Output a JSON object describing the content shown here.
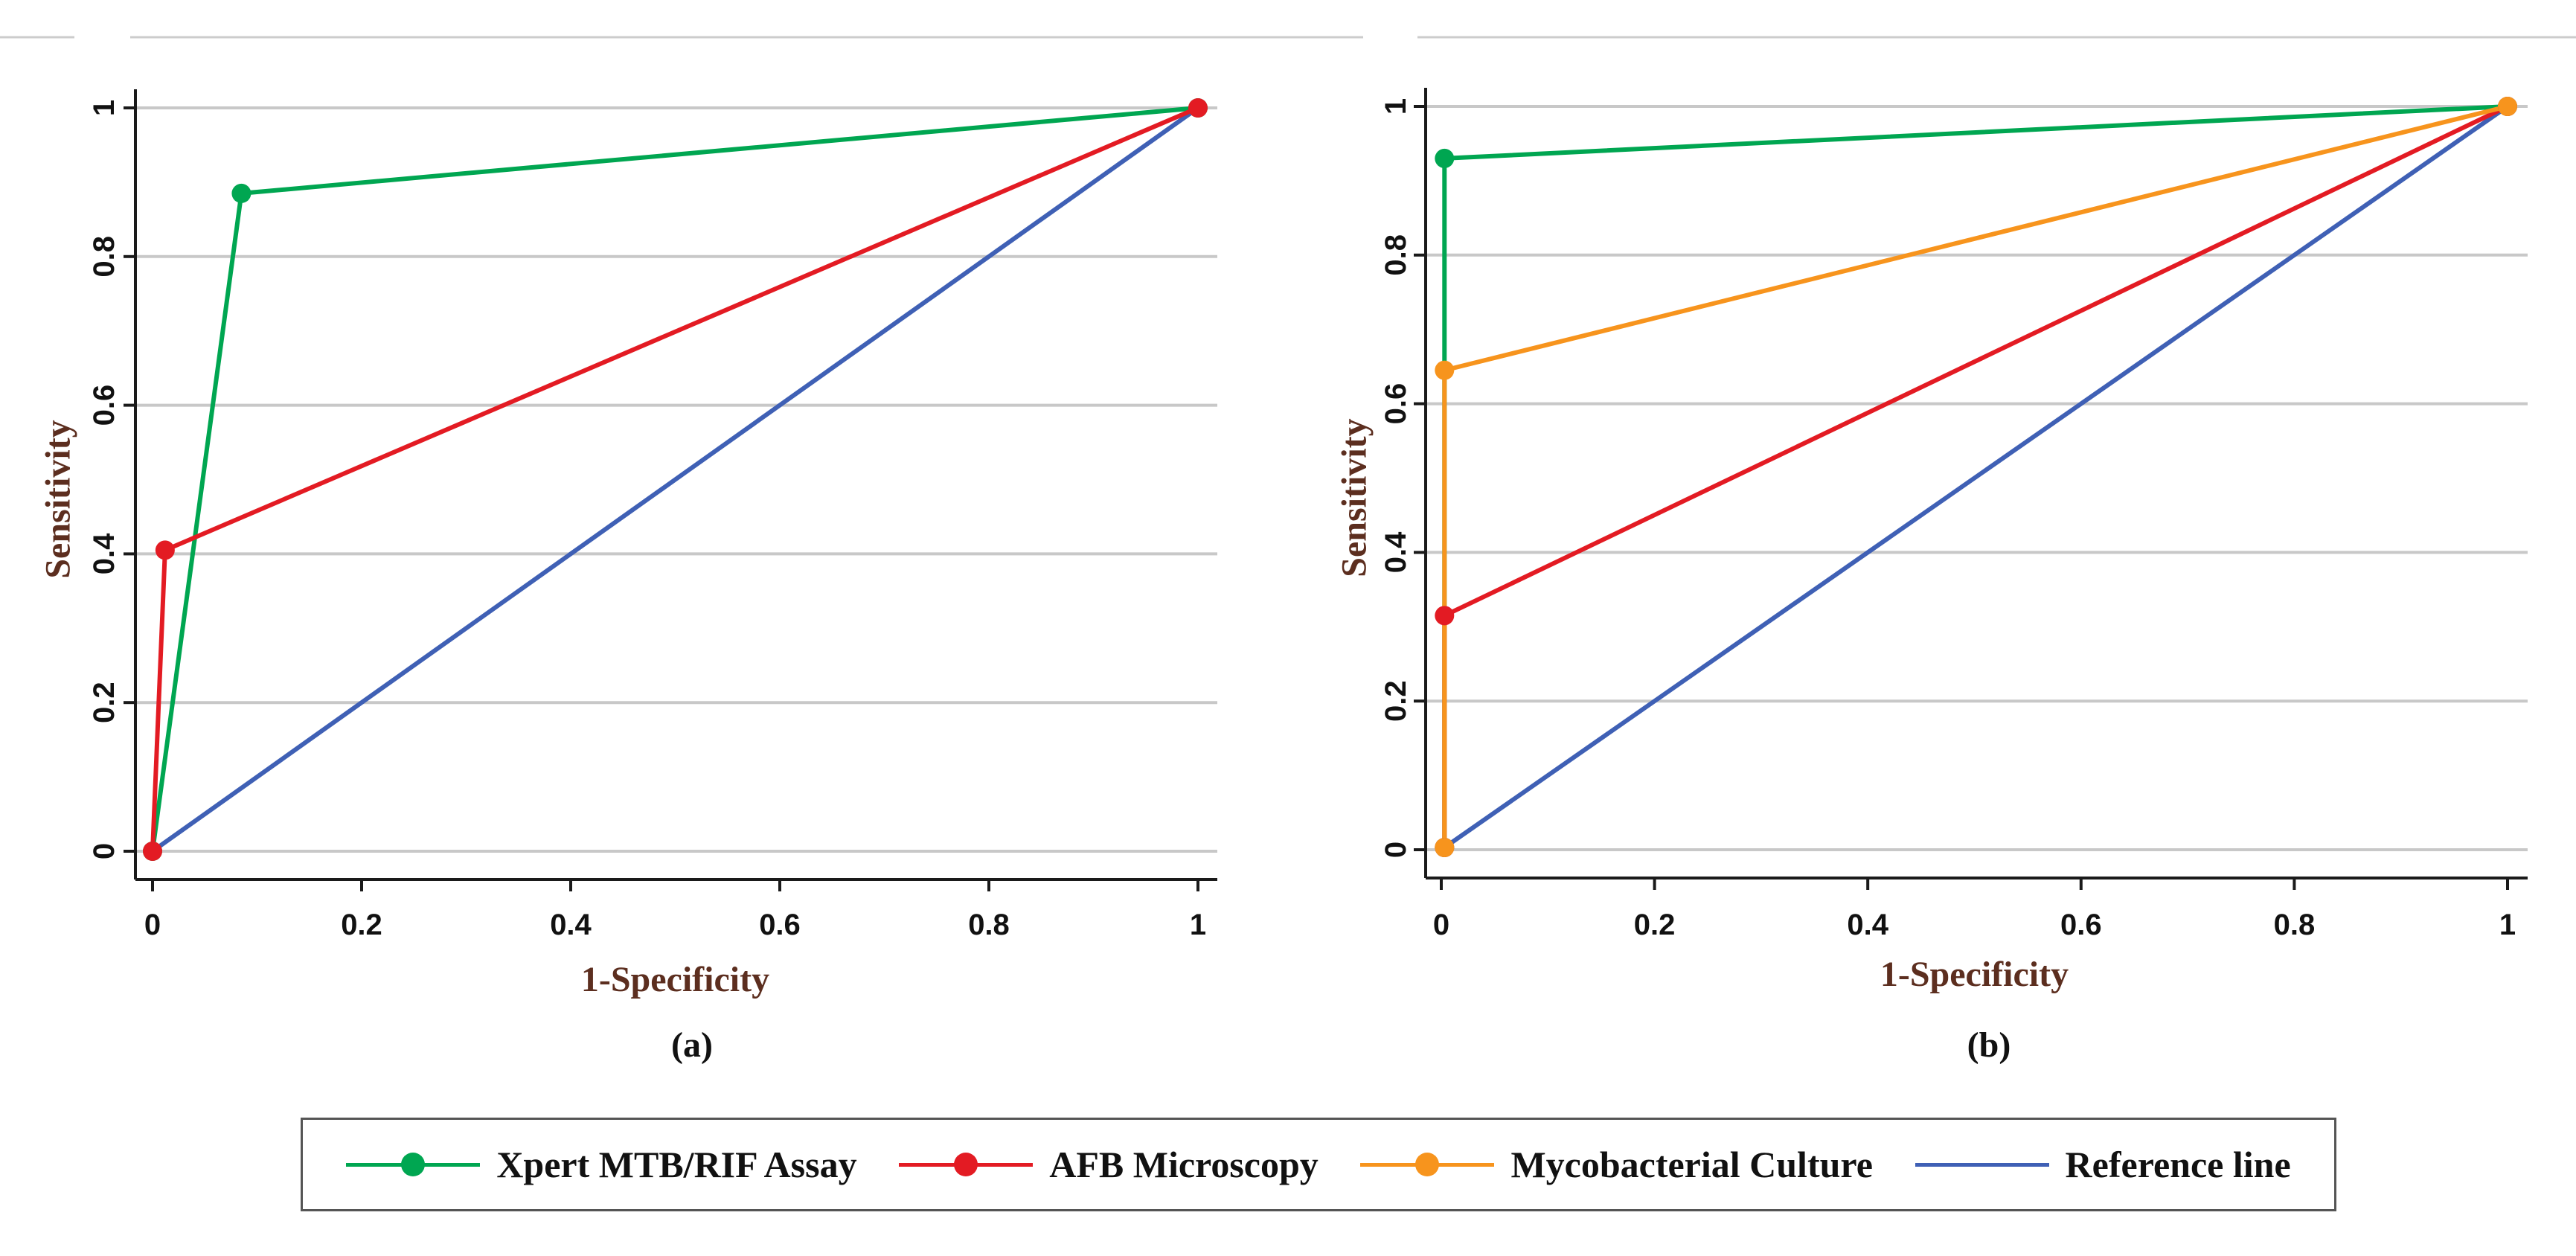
{
  "colors": {
    "xpert": "#00a651",
    "afb": "#e31b23",
    "culture": "#f7941d",
    "reference": "#3f60b5",
    "axis_title": "#5c2e1f",
    "grid": "#c8c8c8"
  },
  "chart_data": [
    {
      "type": "line",
      "panel": "a",
      "caption": "(a)",
      "xlabel": "1-Specificity",
      "ylabel": "Sensitivity",
      "xlim": [
        0,
        1
      ],
      "ylim": [
        0,
        1
      ],
      "xticks": [
        "0",
        "0.2",
        "0.4",
        "0.6",
        "0.8",
        "1"
      ],
      "yticks": [
        "0",
        "0.2",
        "0.4",
        "0.6",
        "0.8",
        "1"
      ],
      "grid": "horizontal",
      "series": [
        {
          "name": "Xpert MTB/RIF Assay",
          "key": "xpert",
          "markers": true,
          "points": [
            [
              0,
              0
            ],
            [
              0.085,
              0.885
            ],
            [
              1,
              1
            ]
          ]
        },
        {
          "name": "AFB Microscopy",
          "key": "afb",
          "markers": true,
          "points": [
            [
              0,
              0
            ],
            [
              0.012,
              0.405
            ],
            [
              1,
              1
            ]
          ]
        },
        {
          "name": "Reference line",
          "key": "reference",
          "markers": false,
          "points": [
            [
              0,
              0
            ],
            [
              1,
              1
            ]
          ]
        }
      ]
    },
    {
      "type": "line",
      "panel": "b",
      "caption": "(b)",
      "xlabel": "1-Specificity",
      "ylabel": "Sensitivity",
      "xlim": [
        0,
        1
      ],
      "ylim": [
        0,
        1
      ],
      "xticks": [
        "0",
        "0.2",
        "0.4",
        "0.6",
        "0.8",
        "1"
      ],
      "yticks": [
        "0",
        "0.2",
        "0.4",
        "0.6",
        "0.8",
        "1"
      ],
      "grid": "horizontal",
      "series": [
        {
          "name": "Xpert MTB/RIF Assay",
          "key": "xpert",
          "markers": true,
          "points": [
            [
              0.003,
              0.003
            ],
            [
              0.003,
              0.93
            ],
            [
              1,
              1
            ]
          ]
        },
        {
          "name": "AFB Microscopy",
          "key": "afb",
          "markers": true,
          "points": [
            [
              0.003,
              0.003
            ],
            [
              0.003,
              0.315
            ],
            [
              1,
              1
            ]
          ]
        },
        {
          "name": "Mycobacterial Culture",
          "key": "culture",
          "markers": true,
          "points": [
            [
              0.003,
              0.003
            ],
            [
              0.003,
              0.645
            ],
            [
              1,
              1
            ]
          ]
        },
        {
          "name": "Reference line",
          "key": "reference",
          "markers": false,
          "points": [
            [
              0,
              0
            ],
            [
              1,
              1
            ]
          ]
        }
      ]
    }
  ],
  "legend": {
    "items": [
      {
        "label": "Xpert MTB/RIF Assay",
        "key": "xpert",
        "marker": true
      },
      {
        "label": "AFB Microscopy",
        "key": "afb",
        "marker": true
      },
      {
        "label": "Mycobacterial Culture",
        "key": "culture",
        "marker": true
      },
      {
        "label": "Reference line",
        "key": "reference",
        "marker": false
      }
    ]
  }
}
